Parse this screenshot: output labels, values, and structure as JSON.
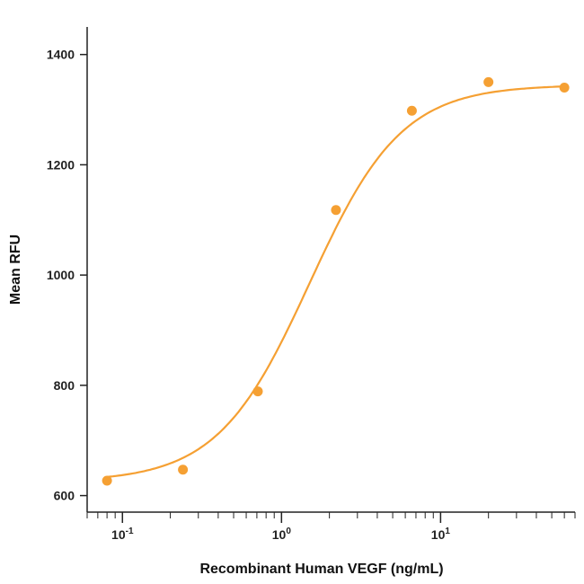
{
  "chart_data": {
    "type": "scatter",
    "xlabel": "Recombinant Human VEGF (ng/mL)",
    "ylabel": "Mean RFU",
    "xscale": "log",
    "xlim": [
      0.06,
      70
    ],
    "ylim": [
      570,
      1450
    ],
    "x_ticks": [
      {
        "value": 0.1,
        "base": "10",
        "exp": "-1"
      },
      {
        "value": 1,
        "base": "10",
        "exp": "0"
      },
      {
        "value": 10,
        "base": "10",
        "exp": "1"
      }
    ],
    "y_ticks": [
      600,
      800,
      1000,
      1200,
      1400
    ],
    "grid": false,
    "color": "#F5A033",
    "series": [
      {
        "points": [
          {
            "x": 0.08,
            "y": 627
          },
          {
            "x": 0.24,
            "y": 647
          },
          {
            "x": 0.71,
            "y": 789
          },
          {
            "x": 2.2,
            "y": 1118
          },
          {
            "x": 6.6,
            "y": 1298
          },
          {
            "x": 20,
            "y": 1350
          },
          {
            "x": 60,
            "y": 1340
          }
        ],
        "fit": {
          "model": "4PL",
          "bottom": 625,
          "top": 1345,
          "ec50": 1.5,
          "hill": 1.5
        }
      }
    ]
  }
}
